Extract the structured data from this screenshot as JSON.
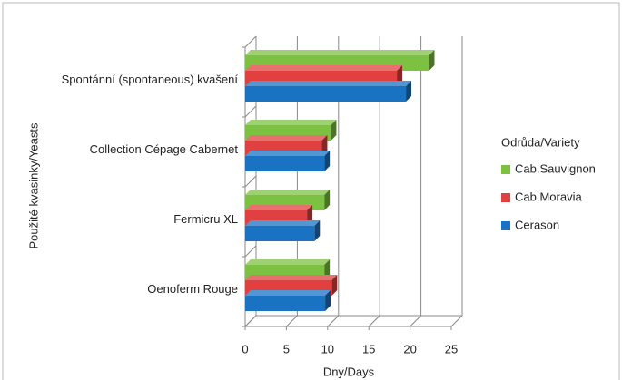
{
  "chart_data": {
    "type": "bar",
    "orientation": "horizontal",
    "xlabel": "Dny/Days",
    "ylabel": "Použité kvasinky/Yeasts",
    "legend_title": "Odrůda/Variety",
    "categories": [
      "Spontánní (spontaneous) kvašení",
      "Collection Cépage Cabernet",
      "Fermicru XL",
      "Oenoferm Rouge"
    ],
    "series": [
      {
        "name": "Cab.Sauvignon",
        "color": "#7dc142",
        "values": [
          22.3,
          10.4,
          9.6,
          9.6
        ]
      },
      {
        "name": "Cab.Moravia",
        "color": "#e0403f",
        "values": [
          18.4,
          9.3,
          7.5,
          10.5
        ]
      },
      {
        "name": "Cerason",
        "color": "#1a73c2",
        "values": [
          19.5,
          9.6,
          8.4,
          9.7
        ]
      }
    ],
    "xlim": [
      0,
      25
    ],
    "xticks": [
      0,
      5,
      10,
      15,
      20,
      25
    ],
    "grid": true,
    "legend": "right"
  }
}
